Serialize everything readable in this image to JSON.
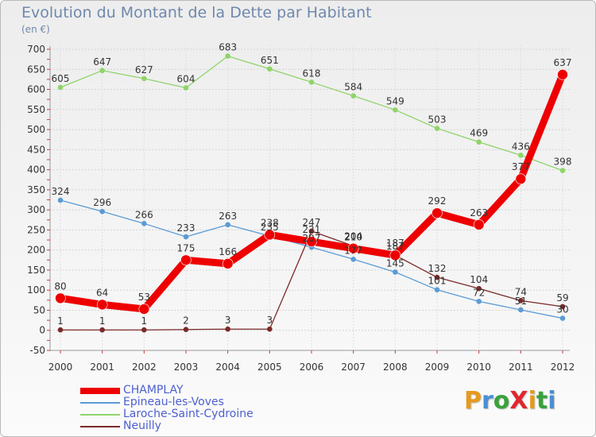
{
  "title": "Evolution du Montant de la Dette par Habitant",
  "subtitle": "(en €)",
  "logo": {
    "text": "ProXiti",
    "letter_colors": [
      "#e69a1c",
      "#4a8fd6",
      "#3aa23c",
      "#e0262f",
      "#e69a1c",
      "#3aa23c",
      "#4a8fd6"
    ]
  },
  "chart_data": {
    "type": "line",
    "title": "Evolution du Montant de la Dette par Habitant",
    "ylabel": "(en €)",
    "xlabel": "",
    "x": [
      "2000",
      "2001",
      "2002",
      "2003",
      "2004",
      "2005",
      "2006",
      "2007",
      "2008",
      "2009",
      "2010",
      "2011",
      "2012"
    ],
    "ylim": [
      -50,
      700
    ],
    "yticks": [
      "-50",
      "0",
      "50",
      "100",
      "150",
      "200",
      "250",
      "300",
      "350",
      "400",
      "450",
      "500",
      "550",
      "600",
      "650",
      "700"
    ],
    "grid": "horizontal dotted",
    "legend_position": "bottom",
    "series": [
      {
        "name": "CHAMPLAY",
        "color": "#ee0000",
        "width": "thick",
        "values": [
          80,
          64,
          53,
          175,
          166,
          238,
          221,
          204,
          187,
          292,
          263,
          377,
          637
        ],
        "labels": [
          "80",
          "64",
          "53",
          "175",
          "166",
          "238",
          "221",
          "204",
          "187",
          "292",
          "263",
          "377",
          "637"
        ]
      },
      {
        "name": "Epineau-les-Voves",
        "color": "#5b9bd5",
        "width": "thin",
        "values": [
          324,
          296,
          266,
          233,
          263,
          235,
          207,
          177,
          145,
          101,
          72,
          51,
          30
        ],
        "labels": [
          "324",
          "296",
          "266",
          "233",
          "263",
          "235",
          "207",
          "177",
          "145",
          "101",
          "72",
          "51",
          "30"
        ]
      },
      {
        "name": "Laroche-Saint-Cydroine",
        "color": "#8fd46a",
        "width": "thin",
        "values": [
          605,
          647,
          627,
          604,
          683,
          651,
          618,
          584,
          549,
          503,
          469,
          436,
          398
        ],
        "labels": [
          "605",
          "647",
          "627",
          "604",
          "683",
          "651",
          "618",
          "584",
          "549",
          "503",
          "469",
          "436",
          "398"
        ]
      },
      {
        "name": "Neuilly",
        "color": "#7b2a2a",
        "width": "thin",
        "values": [
          1,
          1,
          1,
          2,
          3,
          3,
          247,
          210,
          187,
          132,
          104,
          74,
          59
        ],
        "labels": [
          "1",
          "1",
          "1",
          "2",
          "3",
          "3",
          "247",
          "210",
          "187",
          "132",
          "104",
          "74",
          "59"
        ]
      }
    ]
  }
}
